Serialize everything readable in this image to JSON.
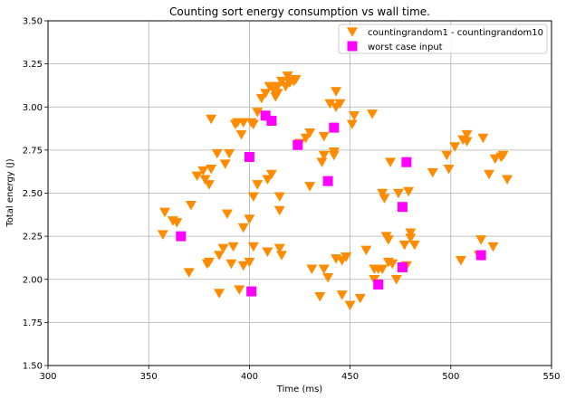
{
  "chart_data": {
    "type": "scatter",
    "title": "Counting sort energy consumption vs wall time.",
    "xlabel": "Time (ms)",
    "ylabel": "Total energy (J)",
    "xlim": [
      300,
      550
    ],
    "ylim": [
      1.5,
      3.5
    ],
    "xticks": [
      "300",
      "350",
      "400",
      "450",
      "500",
      "550"
    ],
    "yticks": [
      "1.50",
      "1.75",
      "2.00",
      "2.25",
      "2.50",
      "2.75",
      "3.00",
      "3.25",
      "3.50"
    ],
    "grid": true,
    "legend_position": "top-right",
    "series": [
      {
        "name": "countingrandom1 - countingrandom10",
        "marker": "triangle-down",
        "color": "#ff8c00",
        "points": [
          [
            357,
            2.26
          ],
          [
            358,
            2.39
          ],
          [
            362,
            2.34
          ],
          [
            364,
            2.33
          ],
          [
            370,
            2.04
          ],
          [
            371,
            2.43
          ],
          [
            374,
            2.6
          ],
          [
            377,
            2.63
          ],
          [
            378,
            2.58
          ],
          [
            379,
            2.09
          ],
          [
            380,
            2.1
          ],
          [
            380,
            2.55
          ],
          [
            381,
            2.64
          ],
          [
            381,
            2.93
          ],
          [
            384,
            2.73
          ],
          [
            385,
            1.92
          ],
          [
            385,
            2.14
          ],
          [
            387,
            2.18
          ],
          [
            388,
            2.67
          ],
          [
            389,
            2.38
          ],
          [
            390,
            2.73
          ],
          [
            391,
            2.09
          ],
          [
            392,
            2.19
          ],
          [
            393,
            2.9
          ],
          [
            394,
            2.91
          ],
          [
            395,
            1.94
          ],
          [
            396,
            2.84
          ],
          [
            397,
            2.08
          ],
          [
            397,
            2.3
          ],
          [
            397,
            2.91
          ],
          [
            400,
            2.1
          ],
          [
            400,
            2.35
          ],
          [
            401,
            2.91
          ],
          [
            402,
            2.19
          ],
          [
            402,
            2.48
          ],
          [
            402,
            2.9
          ],
          [
            404,
            2.55
          ],
          [
            404,
            2.97
          ],
          [
            406,
            3.05
          ],
          [
            408,
            3.08
          ],
          [
            409,
            2.16
          ],
          [
            409,
            2.58
          ],
          [
            410,
            3.12
          ],
          [
            411,
            2.61
          ],
          [
            412,
            3.1
          ],
          [
            413,
            3.06
          ],
          [
            414,
            3.08
          ],
          [
            414,
            3.12
          ],
          [
            415,
            2.18
          ],
          [
            415,
            2.4
          ],
          [
            415,
            2.48
          ],
          [
            416,
            2.14
          ],
          [
            416,
            3.15
          ],
          [
            418,
            3.12
          ],
          [
            419,
            3.18
          ],
          [
            420,
            3.14
          ],
          [
            422,
            3.15
          ],
          [
            423,
            3.16
          ],
          [
            425,
            2.79
          ],
          [
            428,
            2.82
          ],
          [
            430,
            2.54
          ],
          [
            430,
            2.85
          ],
          [
            431,
            2.06
          ],
          [
            435,
            1.9
          ],
          [
            436,
            2.68
          ],
          [
            437,
            2.06
          ],
          [
            437,
            2.72
          ],
          [
            437,
            2.83
          ],
          [
            439,
            2.01
          ],
          [
            440,
            3.02
          ],
          [
            442,
            2.72
          ],
          [
            442,
            2.74
          ],
          [
            443,
            3.0
          ],
          [
            443,
            3.09
          ],
          [
            443,
            2.12
          ],
          [
            445,
            3.02
          ],
          [
            446,
            2.11
          ],
          [
            446,
            1.91
          ],
          [
            448,
            2.13
          ],
          [
            448,
            2.13
          ],
          [
            450,
            1.85
          ],
          [
            451,
            2.9
          ],
          [
            452,
            2.95
          ],
          [
            455,
            1.89
          ],
          [
            458,
            2.17
          ],
          [
            461,
            2.96
          ],
          [
            462,
            2.0
          ],
          [
            462,
            2.06
          ],
          [
            464,
            2.06
          ],
          [
            466,
            2.5
          ],
          [
            466,
            2.06
          ],
          [
            467,
            2.47
          ],
          [
            468,
            2.25
          ],
          [
            469,
            2.1
          ],
          [
            469,
            2.23
          ],
          [
            470,
            2.68
          ],
          [
            471,
            2.09
          ],
          [
            473,
            2.0
          ],
          [
            474,
            2.5
          ],
          [
            476,
            2.07
          ],
          [
            477,
            2.2
          ],
          [
            478,
            2.08
          ],
          [
            479,
            2.51
          ],
          [
            480,
            2.27
          ],
          [
            480,
            2.24
          ],
          [
            482,
            2.2
          ],
          [
            491,
            2.62
          ],
          [
            498,
            2.72
          ],
          [
            499,
            2.64
          ],
          [
            502,
            2.77
          ],
          [
            505,
            2.11
          ],
          [
            506,
            2.81
          ],
          [
            508,
            2.84
          ],
          [
            508,
            2.8
          ],
          [
            514,
            2.14
          ],
          [
            515,
            2.23
          ],
          [
            516,
            2.82
          ],
          [
            519,
            2.61
          ],
          [
            521,
            2.19
          ],
          [
            522,
            2.7
          ],
          [
            525,
            2.71
          ],
          [
            526,
            2.72
          ],
          [
            528,
            2.58
          ]
        ]
      },
      {
        "name": "worst case input",
        "marker": "square",
        "color": "#ff00ff",
        "points": [
          [
            366,
            2.25
          ],
          [
            400,
            2.71
          ],
          [
            401,
            1.93
          ],
          [
            408,
            2.95
          ],
          [
            411,
            2.92
          ],
          [
            424,
            2.78
          ],
          [
            439,
            2.57
          ],
          [
            442,
            2.88
          ],
          [
            464,
            1.97
          ],
          [
            476,
            2.42
          ],
          [
            476,
            2.07
          ],
          [
            478,
            2.68
          ],
          [
            515,
            2.14
          ]
        ]
      }
    ]
  }
}
